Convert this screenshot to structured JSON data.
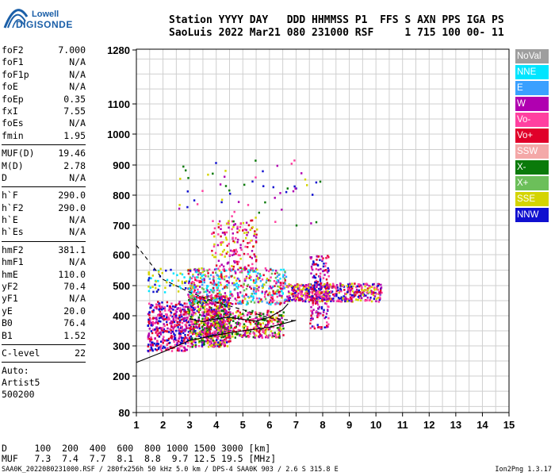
{
  "logo": {
    "line1": "Lowell",
    "line2": "DIGISONDE"
  },
  "header": {
    "line1": "Station YYYY DAY   DDD HHMMSS P1  FFS S AXN PPS IGA PS",
    "line2": "SaoLuis 2022 Mar21 080 231000 RSF     1 715 100 00- 11"
  },
  "params": [
    {
      "label": "foF2",
      "value": "7.000"
    },
    {
      "label": "foF1",
      "value": "N/A"
    },
    {
      "label": "foF1p",
      "value": "N/A"
    },
    {
      "label": "foE",
      "value": "N/A"
    },
    {
      "label": "foEp",
      "value": "0.35"
    },
    {
      "label": "fxI",
      "value": "7.55"
    },
    {
      "label": "foEs",
      "value": "N/A"
    },
    {
      "label": "fmin",
      "value": "1.95"
    },
    {
      "label": "MUF(D)",
      "value": "19.46",
      "sep": true
    },
    {
      "label": "M(D)",
      "value": "2.78"
    },
    {
      "label": "D",
      "value": "N/A"
    },
    {
      "label": "h`F",
      "value": "290.0",
      "sep": true
    },
    {
      "label": "h`F2",
      "value": "290.0"
    },
    {
      "label": "h`E",
      "value": "N/A"
    },
    {
      "label": "h`Es",
      "value": "N/A"
    },
    {
      "label": "hmF2",
      "value": "381.1",
      "sep": true
    },
    {
      "label": "hmF1",
      "value": "N/A"
    },
    {
      "label": "hmE",
      "value": "110.0"
    },
    {
      "label": "yF2",
      "value": "70.4"
    },
    {
      "label": "yF1",
      "value": "N/A"
    },
    {
      "label": "yE",
      "value": "20.0"
    },
    {
      "label": "B0",
      "value": "76.4"
    },
    {
      "label": "B1",
      "value": "1.52"
    },
    {
      "label": "C-level",
      "value": "22",
      "sep": true
    }
  ],
  "auto": [
    "Auto:",
    "Artist5",
    "500200"
  ],
  "legend": [
    {
      "label": "NoVal",
      "color": "#9e9e9e"
    },
    {
      "label": "NNE",
      "color": "#00e5ff"
    },
    {
      "label": "E",
      "color": "#3aa0ff"
    },
    {
      "label": "W",
      "color": "#b000b0"
    },
    {
      "label": "Vo-",
      "color": "#ff40a0"
    },
    {
      "label": "Vo+",
      "color": "#e0002a"
    },
    {
      "label": "SSW",
      "color": "#f4a8a8"
    },
    {
      "label": "X-",
      "color": "#0a7a0a"
    },
    {
      "label": "X+",
      "color": "#6cbf5a"
    },
    {
      "label": "SSE",
      "color": "#d4d400"
    },
    {
      "label": "NNW",
      "color": "#1010d0"
    }
  ],
  "footer": {
    "d_row": "D     100  200  400  600  800 1000 1500 3000 [km]",
    "muf_row": "MUF   7.3  7.4  7.7  8.1  8.8  9.7 12.5 19.5 [MHz]",
    "bottom_left": "SAA0K_2022080231000.RSF / 280fx256h 50 kHz 5.0 km / DPS-4 SAA0K 903 / 2.6 S 315.8 E",
    "bottom_right": "Ion2Png 1.3.17"
  },
  "chart_data": {
    "type": "scatter",
    "xlim": [
      1,
      15
    ],
    "ylim": [
      80,
      1280
    ],
    "x_ticks": [
      1,
      2,
      3,
      4,
      5,
      6,
      7,
      8,
      9,
      10,
      11,
      12,
      13,
      14,
      15
    ],
    "y_ticks": [
      80,
      200,
      300,
      400,
      500,
      600,
      700,
      800,
      900,
      1000,
      1100,
      1280
    ],
    "grid": true,
    "clusters": [
      {
        "x": [
          1.4,
          2.9
        ],
        "y": [
          285,
          450
        ],
        "density": 420,
        "colors": [
          "#1010d0",
          "#b000b0",
          "#ff40a0",
          "#e0002a"
        ]
      },
      {
        "x": [
          2.9,
          4.5
        ],
        "y": [
          300,
          470
        ],
        "density": 700,
        "colors": [
          "#b000b0",
          "#ff40a0",
          "#1010d0",
          "#e0002a",
          "#d4d400",
          "#0a7a0a"
        ]
      },
      {
        "x": [
          3.5,
          6.5
        ],
        "y": [
          330,
          420
        ],
        "density": 420,
        "colors": [
          "#e0002a",
          "#ff40a0",
          "#b000b0",
          "#d4d400",
          "#0a7a0a"
        ]
      },
      {
        "x": [
          2.9,
          6.6
        ],
        "y": [
          440,
          560
        ],
        "density": 520,
        "colors": [
          "#ff40a0",
          "#e0002a",
          "#b000b0",
          "#d4d400",
          "#6cbf5a",
          "#00e5ff",
          "#3aa0ff"
        ]
      },
      {
        "x": [
          6.6,
          10.2
        ],
        "y": [
          450,
          510
        ],
        "density": 500,
        "colors": [
          "#e0002a",
          "#ff40a0",
          "#b000b0",
          "#d4d400",
          "#1010d0"
        ]
      },
      {
        "x": [
          3.8,
          5.5
        ],
        "y": [
          550,
          720
        ],
        "density": 160,
        "colors": [
          "#b000b0",
          "#ff40a0",
          "#e0002a",
          "#d4d400"
        ]
      },
      {
        "x": [
          7.5,
          8.2
        ],
        "y": [
          360,
          600
        ],
        "density": 180,
        "colors": [
          "#b000b0",
          "#ff40a0",
          "#e0002a",
          "#1010d0"
        ]
      },
      {
        "x": [
          1.4,
          3.0
        ],
        "y": [
          480,
          560
        ],
        "density": 60,
        "colors": [
          "#1010d0",
          "#00e5ff",
          "#d4d400"
        ]
      },
      {
        "x": [
          2.5,
          8.0
        ],
        "y": [
          700,
          920
        ],
        "density": 60,
        "colors": [
          "#b000b0",
          "#d4d400",
          "#ff40a0",
          "#0a7a0a",
          "#1010d0"
        ]
      }
    ],
    "curves": [
      {
        "name": "solid",
        "style": "solid",
        "x": [
          1.0,
          2.0,
          3.0,
          4.0,
          5.0,
          6.0,
          7.0
        ],
        "y": [
          245,
          280,
          318,
          336,
          350,
          362,
          385
        ]
      },
      {
        "name": "dashed",
        "style": "dashed",
        "x": [
          1.0,
          2.0,
          3.0,
          4.0,
          5.0,
          6.0,
          7.0
        ],
        "y": [
          632,
          520,
          478,
          445,
          420,
          393,
          383
        ]
      },
      {
        "name": "profile",
        "style": "solid",
        "x": [
          3.0,
          3.5,
          4.0,
          4.5,
          5.0,
          5.5,
          6.0,
          6.5,
          6.7
        ],
        "y": [
          390,
          380,
          390,
          395,
          388,
          382,
          395,
          420,
          440
        ]
      }
    ]
  }
}
